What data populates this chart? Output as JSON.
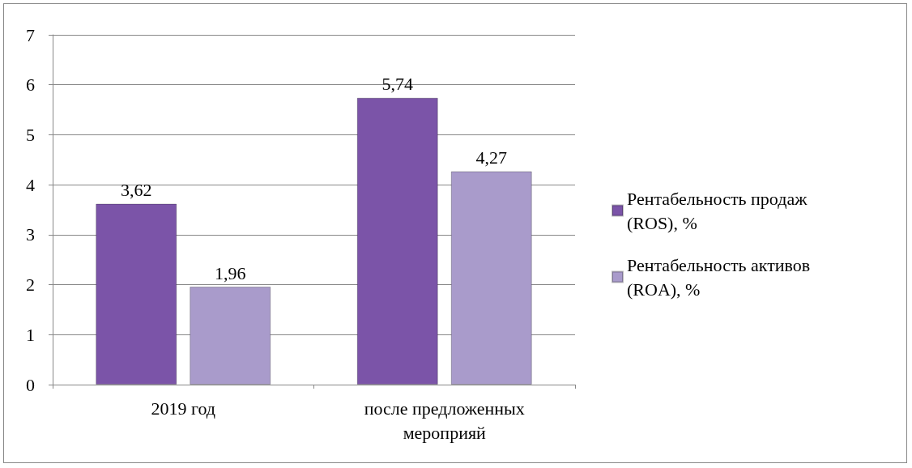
{
  "chart_data": {
    "type": "bar",
    "categories": [
      "2019 год",
      "после предложенных мероприяй"
    ],
    "series": [
      {
        "name": "Рентабельность продаж (ROS), %",
        "color": "#7b54a8",
        "values": [
          3.62,
          5.74
        ],
        "value_labels": [
          "3,62",
          "5,74"
        ]
      },
      {
        "name": "Рентабельность активов (ROA), %",
        "color": "#a99bcb",
        "values": [
          1.96,
          4.27
        ],
        "value_labels": [
          "1,96",
          "4,27"
        ]
      }
    ],
    "ylim": [
      0,
      7
    ],
    "yticks": [
      0,
      1,
      2,
      3,
      4,
      5,
      6,
      7
    ],
    "grid": "y",
    "legend": "right"
  }
}
